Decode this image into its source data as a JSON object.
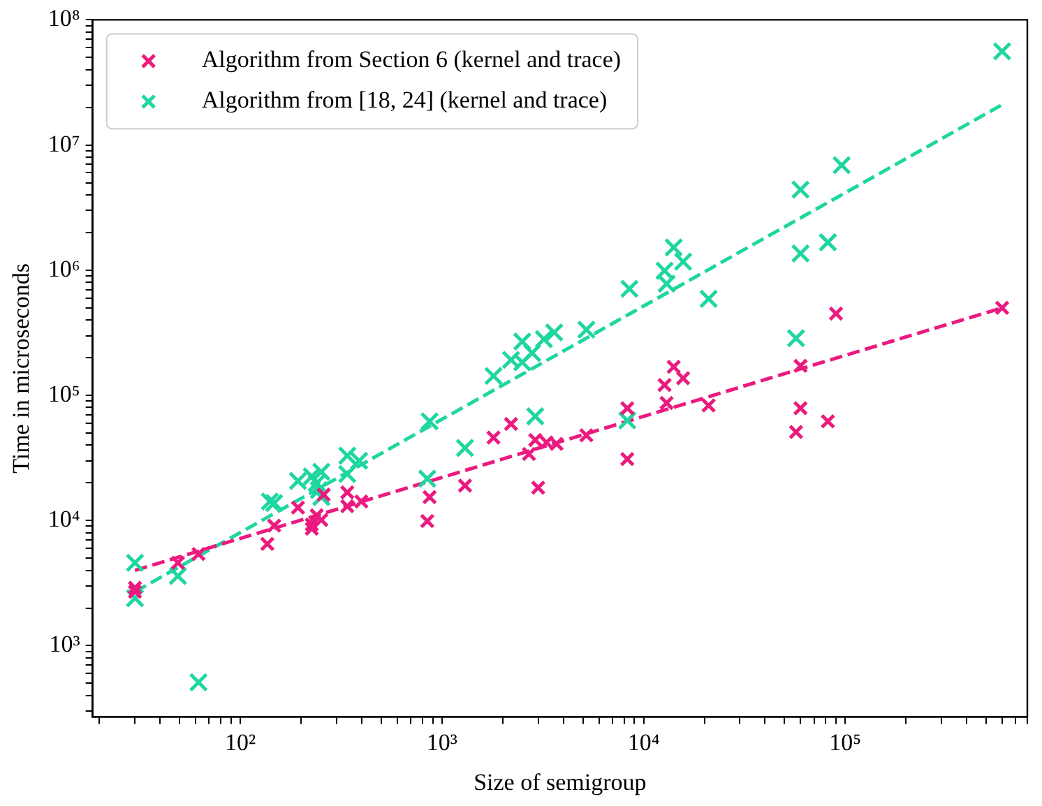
{
  "chart_data": {
    "type": "scatter",
    "xlabel": "Size of semigroup",
    "ylabel": "Time in microseconds",
    "log": "xy",
    "grid": false,
    "legend": "top left",
    "marker": "cross",
    "xlim": [
      18.5,
      800000
    ],
    "ylim": [
      270,
      100000000
    ],
    "xticks": [
      {
        "value": 20,
        "label": null
      },
      {
        "value": 30,
        "label": null
      },
      {
        "value": 40,
        "label": null
      },
      {
        "value": 50,
        "label": null
      },
      {
        "value": 60,
        "label": null
      },
      {
        "value": 70,
        "label": null
      },
      {
        "value": 80,
        "label": null
      },
      {
        "value": 90,
        "label": null
      },
      {
        "value": 100,
        "label": "10²"
      },
      {
        "value": 200,
        "label": null
      },
      {
        "value": 300,
        "label": null
      },
      {
        "value": 400,
        "label": null
      },
      {
        "value": 500,
        "label": null
      },
      {
        "value": 600,
        "label": null
      },
      {
        "value": 700,
        "label": null
      },
      {
        "value": 800,
        "label": null
      },
      {
        "value": 900,
        "label": null
      },
      {
        "value": 1000,
        "label": "10³"
      },
      {
        "value": 2000,
        "label": null
      },
      {
        "value": 3000,
        "label": null
      },
      {
        "value": 4000,
        "label": null
      },
      {
        "value": 5000,
        "label": null
      },
      {
        "value": 6000,
        "label": null
      },
      {
        "value": 7000,
        "label": null
      },
      {
        "value": 8000,
        "label": null
      },
      {
        "value": 9000,
        "label": null
      },
      {
        "value": 10000,
        "label": "10⁴"
      },
      {
        "value": 20000,
        "label": null
      },
      {
        "value": 30000,
        "label": null
      },
      {
        "value": 40000,
        "label": null
      },
      {
        "value": 50000,
        "label": null
      },
      {
        "value": 60000,
        "label": null
      },
      {
        "value": 70000,
        "label": null
      },
      {
        "value": 80000,
        "label": null
      },
      {
        "value": 90000,
        "label": null
      },
      {
        "value": 100000,
        "label": "10⁵"
      },
      {
        "value": 200000,
        "label": null
      },
      {
        "value": 300000,
        "label": null
      },
      {
        "value": 400000,
        "label": null
      },
      {
        "value": 500000,
        "label": null
      },
      {
        "value": 600000,
        "label": null
      },
      {
        "value": 700000,
        "label": null
      },
      {
        "value": 800000,
        "label": null
      }
    ],
    "yticks": [
      {
        "value": 300,
        "label": null
      },
      {
        "value": 400,
        "label": null
      },
      {
        "value": 500,
        "label": null
      },
      {
        "value": 600,
        "label": null
      },
      {
        "value": 700,
        "label": null
      },
      {
        "value": 800,
        "label": null
      },
      {
        "value": 900,
        "label": null
      },
      {
        "value": 1000,
        "label": "10³"
      },
      {
        "value": 2000,
        "label": null
      },
      {
        "value": 3000,
        "label": null
      },
      {
        "value": 4000,
        "label": null
      },
      {
        "value": 5000,
        "label": null
      },
      {
        "value": 6000,
        "label": null
      },
      {
        "value": 7000,
        "label": null
      },
      {
        "value": 8000,
        "label": null
      },
      {
        "value": 9000,
        "label": null
      },
      {
        "value": 10000,
        "label": "10⁴"
      },
      {
        "value": 20000,
        "label": null
      },
      {
        "value": 30000,
        "label": null
      },
      {
        "value": 40000,
        "label": null
      },
      {
        "value": 50000,
        "label": null
      },
      {
        "value": 60000,
        "label": null
      },
      {
        "value": 70000,
        "label": null
      },
      {
        "value": 80000,
        "label": null
      },
      {
        "value": 90000,
        "label": null
      },
      {
        "value": 100000,
        "label": "10⁵"
      },
      {
        "value": 200000,
        "label": null
      },
      {
        "value": 300000,
        "label": null
      },
      {
        "value": 400000,
        "label": null
      },
      {
        "value": 500000,
        "label": null
      },
      {
        "value": 600000,
        "label": null
      },
      {
        "value": 700000,
        "label": null
      },
      {
        "value": 800000,
        "label": null
      },
      {
        "value": 900000,
        "label": null
      },
      {
        "value": 1000000,
        "label": "10⁶"
      },
      {
        "value": 2000000,
        "label": null
      },
      {
        "value": 3000000,
        "label": null
      },
      {
        "value": 4000000,
        "label": null
      },
      {
        "value": 5000000,
        "label": null
      },
      {
        "value": 6000000,
        "label": null
      },
      {
        "value": 7000000,
        "label": null
      },
      {
        "value": 8000000,
        "label": null
      },
      {
        "value": 9000000,
        "label": null
      },
      {
        "value": 10000000,
        "label": "10⁷"
      },
      {
        "value": 20000000,
        "label": null
      },
      {
        "value": 30000000,
        "label": null
      },
      {
        "value": 40000000,
        "label": null
      },
      {
        "value": 50000000,
        "label": null
      },
      {
        "value": 60000000,
        "label": null
      },
      {
        "value": 70000000,
        "label": null
      },
      {
        "value": 80000000,
        "label": null
      },
      {
        "value": 90000000,
        "label": null
      },
      {
        "value": 100000000,
        "label": "10⁸"
      }
    ],
    "series": [
      {
        "name": "Algorithm from Section 6 (kernel and trace)",
        "color": "#eb1a7f",
        "x": [
          30,
          30,
          49,
          62,
          136,
          147,
          193,
          226,
          226,
          239,
          252,
          259,
          339,
          339,
          398,
          845,
          868,
          1300,
          1800,
          2200,
          2700,
          2900,
          3000,
          3300,
          3700,
          5200,
          8300,
          8300,
          12700,
          14100,
          15700,
          13000,
          21000,
          60000,
          60000,
          57000,
          82000,
          90000,
          600000
        ],
        "values": [
          2900,
          2700,
          4600,
          5400,
          6500,
          9100,
          12700,
          9300,
          8600,
          11000,
          10100,
          16100,
          16800,
          13000,
          14200,
          9900,
          15400,
          19000,
          46000,
          59000,
          34000,
          44000,
          18300,
          42000,
          41000,
          48000,
          79000,
          31000,
          121000,
          169000,
          137000,
          87000,
          83000,
          172000,
          79000,
          51000,
          62000,
          450000,
          500000
        ]
      },
      {
        "name": "Algorithm from [18, 24] (kernel and trace)",
        "color": "#1fd6a0",
        "x": [
          30,
          30,
          49,
          62,
          140,
          147,
          193,
          226,
          239,
          252,
          245,
          252,
          339,
          388,
          339,
          845,
          868,
          1300,
          1800,
          2200,
          2500,
          2500,
          2800,
          3200,
          3600,
          2900,
          5200,
          8500,
          8300,
          12700,
          13000,
          14100,
          15700,
          21000,
          57000,
          60000,
          60000,
          82000,
          96000,
          600000
        ],
        "values": [
          4600,
          2400,
          3600,
          510,
          14200,
          13800,
          20700,
          22500,
          19900,
          24500,
          17500,
          15400,
          33000,
          30000,
          23500,
          21600,
          62000,
          38000,
          143000,
          192000,
          269000,
          184000,
          218000,
          281000,
          318000,
          68000,
          335000,
          710000,
          63000,
          990000,
          780000,
          1520000,
          1170000,
          590000,
          286000,
          1360000,
          4400000,
          1670000,
          6900000,
          56000000
        ]
      },
      {
        "type": "line",
        "color": "#eb1a7f",
        "line_style": "dashed",
        "marker": "none",
        "x": [
          30,
          600000
        ],
        "values": [
          4000,
          500000
        ]
      },
      {
        "type": "line",
        "color": "#1fd6a0",
        "line_style": "dashed",
        "marker": "none",
        "x": [
          30,
          600000
        ],
        "values": [
          2700,
          21000000
        ]
      }
    ]
  }
}
